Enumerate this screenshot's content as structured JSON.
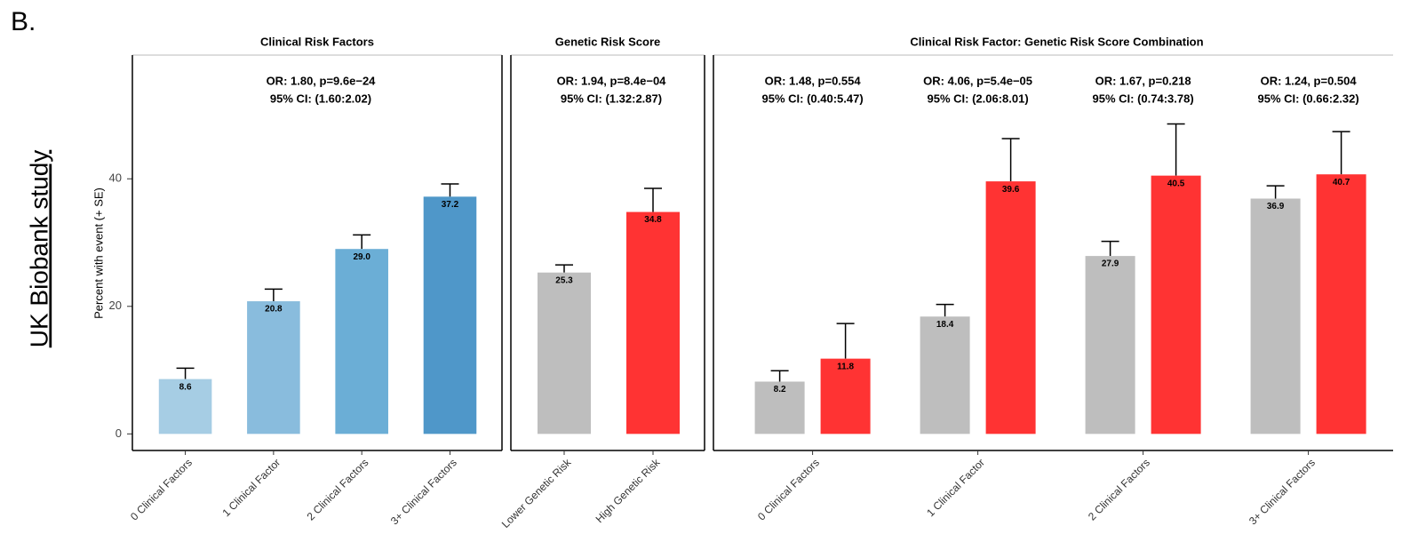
{
  "panel_label": "B.",
  "side_label": "UK Biobank study",
  "chart_data": [
    {
      "type": "bar",
      "title": "Clinical Risk Factors",
      "ylabel": "Percent with event (+ SE)",
      "categories": [
        "0 Clinical Factors",
        "1 Clinical Factor",
        "2 Clinical Factors",
        "3+ Clinical Factors"
      ],
      "values": [
        8.6,
        20.8,
        29.0,
        37.2
      ],
      "value_labels": [
        "8.6",
        "20.8",
        "29.0",
        "37.2"
      ],
      "errors": [
        1.7,
        1.9,
        2.2,
        2.0
      ],
      "colors": [
        "#a6cde4",
        "#89bcdd",
        "#6baed6",
        "#4f97c9"
      ],
      "annotations": [
        "OR: 1.80, p=9.6e−24",
        "95% CI: (1.60:2.02)"
      ],
      "ylim": [
        -2.6,
        59.4
      ],
      "yticks": [
        0,
        20,
        40
      ]
    },
    {
      "type": "bar",
      "title": "Genetic Risk Score",
      "categories": [
        "Lower Genetic Risk",
        "High Genetic Risk"
      ],
      "values": [
        25.3,
        34.8
      ],
      "value_labels": [
        "25.3",
        "34.8"
      ],
      "errors": [
        1.2,
        3.7
      ],
      "colors": [
        "#bebebe",
        "#ff3333"
      ],
      "annotations": [
        "OR: 1.94, p=8.4e−04",
        "95% CI: (1.32:2.87)"
      ]
    },
    {
      "type": "grouped_bar",
      "title": "Clinical Risk Factor: Genetic Risk Score Combination",
      "categories": [
        "0 Clinical Factors",
        "1 Clinical Factor",
        "2 Clinical Factors",
        "3+ Clinical Factors"
      ],
      "series": [
        {
          "color": "#bebebe",
          "values": [
            8.2,
            18.4,
            27.9,
            36.9
          ],
          "value_labels": [
            "8.2",
            "18.4",
            "27.9",
            "36.9"
          ],
          "errors": [
            1.7,
            1.9,
            2.3,
            2.0
          ]
        },
        {
          "color": "#ff3333",
          "values": [
            11.8,
            39.6,
            40.5,
            40.7
          ],
          "value_labels": [
            "11.8",
            "39.6",
            "40.5",
            "40.7"
          ],
          "errors": [
            5.5,
            6.7,
            8.1,
            6.7
          ]
        }
      ],
      "annotations": [
        [
          "OR: 1.48, p=0.554",
          "95% CI: (0.40:5.47)"
        ],
        [
          "OR: 4.06, p=5.4e−05",
          "95% CI: (2.06:8.01)"
        ],
        [
          "OR: 1.67, p=0.218",
          "95% CI: (0.74:3.78)"
        ],
        [
          "OR: 1.24, p=0.504",
          "95% CI: (0.66:2.32)"
        ]
      ]
    }
  ]
}
